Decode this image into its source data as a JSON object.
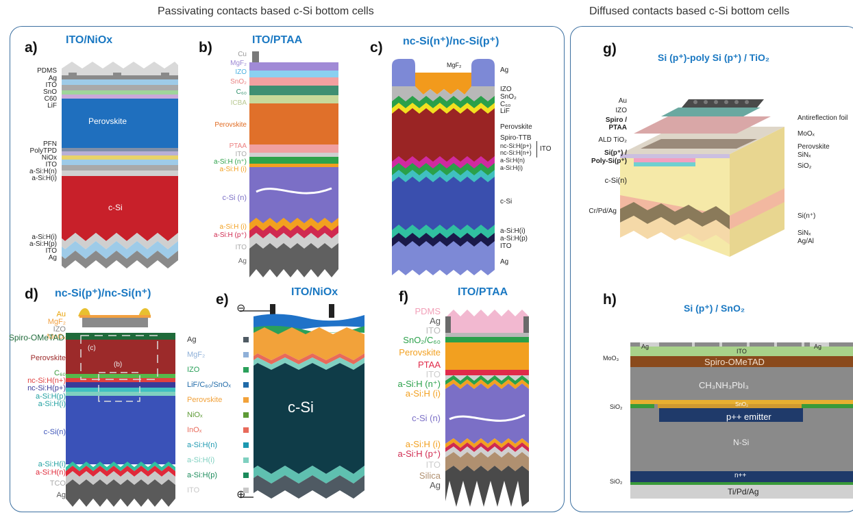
{
  "sections": {
    "left_title": "Passivating contacts based c-Si bottom cells",
    "right_title": "Diffused contacts based c-Si bottom cells"
  },
  "panels": {
    "a": {
      "letter": "a)",
      "title": "ITO/NiOx",
      "labels": [
        "PDMS",
        "Ag",
        "ITO",
        "SnO",
        "C60",
        "LiF",
        "PFN",
        "PolyTPD",
        "NiOx",
        "ITO",
        "a-Si:H(n)",
        "a-Si:H(i)",
        "a-Si:H(i)",
        "a-Si:H(p)",
        "ITO",
        "Ag"
      ],
      "perovskite": "Perovskite",
      "csi": "c-Si"
    },
    "b": {
      "letter": "b)",
      "title": "ITO/PTAA",
      "labels": [
        "Cu",
        "MgF₂",
        "IZO",
        "SnO₂",
        "C₆₀",
        "ICBA",
        "Perovskite",
        "PTAA",
        "ITO",
        "a-Si:H (n⁺)",
        "a-Si:H (i)",
        "c-Si (n)",
        "a-Si:H (i)",
        "a-Si:H (p⁺)",
        "ITO",
        "Ag"
      ]
    },
    "c": {
      "letter": "c)",
      "title": "nc-Si(n⁺)/nc-Si(p⁺)",
      "labels": [
        "MgF₂",
        "Ag",
        "IZO",
        "SnO₂",
        "C₆₀",
        "LiF",
        "Perovskite",
        "Spiro-TTB",
        "nc-Si:H(p+)",
        "nc-Si:H(n+)",
        "a-Si:H(n)",
        "a-Si:H(i)",
        "c-Si",
        "a-Si:H(i)",
        "a-Si:H(p)",
        "ITO",
        "Ag"
      ],
      "bracket": "ITO"
    },
    "d": {
      "letter": "d)",
      "title": "nc-Si(p⁺)/nc-Si(n⁺)",
      "labels": [
        "Au",
        "MgF₂",
        "IZO",
        "MoOₓ",
        "Spiro-OMeTAD",
        "Perovskite",
        "C₆₀",
        "nc-Si:H(n+)",
        "nc-Si:H(p+)",
        "a-Si:H(p)",
        "a-Si:H(i)",
        "c-Si(n)",
        "a-Si:H(i)",
        "a-Si:H(n)",
        "TCO",
        "Ag"
      ],
      "inset_c": "(c)",
      "inset_b": "(b)"
    },
    "e": {
      "letter": "e)",
      "title": "ITO/NiOx",
      "csi": "c-Si",
      "minus": "⊖",
      "plus": "⊕",
      "legend": [
        "Ag",
        "MgF₂",
        "IZO",
        "LiF/C₆₀/SnOₓ",
        "Perovskite",
        "NiOₓ",
        "InOₓ",
        "a-Si:H(n)",
        "a-Si:H(i)",
        "a-Si:H(p)",
        "ITO"
      ],
      "legend_colors": [
        "#4f5a63",
        "#8fb0d8",
        "#2aa05a",
        "#1f6aa8",
        "#f2a23a",
        "#5d9a35",
        "#e86a5a",
        "#1c98b0",
        "#7fd0c0",
        "#1a8a5a",
        "#c8c8c8"
      ]
    },
    "f": {
      "letter": "f)",
      "title": "ITO/PTAA",
      "labels": [
        "PDMS",
        "Ag",
        "ITO",
        "SnO₂/C₆₀",
        "Perovskite",
        "PTAA",
        "ITO",
        "a-Si:H (n⁺)",
        "a-Si:H (i)",
        "c-Si (n)",
        "a-Si:H (i)",
        "a-Si:H (p⁺)",
        "ITO",
        "Silica",
        "Ag"
      ]
    },
    "g": {
      "letter": "g)",
      "title": "Si (p⁺)-poly Si (p⁺) / TiO₂",
      "left_labels": [
        "Au",
        "IZO",
        "Spiro /",
        "PTAA",
        "ALD TiO₂",
        "Si(p⁺) /",
        "Poly-Si(p⁺)",
        "c-Si(n)",
        "Cr/Pd/Ag"
      ],
      "right_labels": [
        "Antireflection foil",
        "MoOₓ",
        "Perovskite",
        "SiNₓ",
        "SiO₂",
        "Si(n⁺)",
        "SiNₓ",
        "Ag/Al"
      ]
    },
    "h": {
      "letter": "h)",
      "title": "Si (p⁺) / SnO₂",
      "labels": [
        "Ag",
        "ITO",
        "Ag",
        "MoO₃",
        "Spiro-OMeTAD",
        "CH₃NH₃PbI₃",
        "SiO₂",
        "SnO₂",
        "p++ emitter",
        "N-Si",
        "SiO₂",
        "n++",
        "Ti/Pd/Ag"
      ]
    }
  }
}
